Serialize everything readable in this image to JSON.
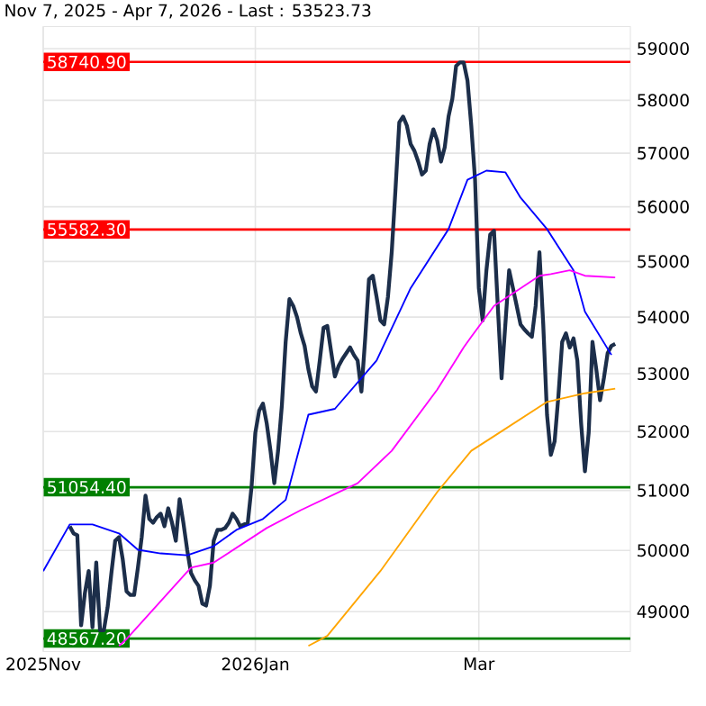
{
  "chart_data": {
    "type": "line",
    "title": "Nov 7, 2025 - Apr 7, 2026 - Last : 53523.73",
    "log": "y",
    "grid": true,
    "xlim": [
      "2025-11-07",
      "2026-04-11"
    ],
    "xticks": [
      {
        "value": "2025-11-07",
        "label": "2025Nov"
      },
      {
        "value": "2026-01-02",
        "label": "2026Jan"
      },
      {
        "value": "2026-03-02",
        "label": "Mar"
      }
    ],
    "ylim": [
      48360,
      59430
    ],
    "yticks": [
      49000,
      50000,
      51000,
      52000,
      53000,
      54000,
      55000,
      56000,
      57000,
      58000,
      59000
    ],
    "ref_lines": [
      {
        "axis": "y",
        "value": 58740.9,
        "label": "58740.90",
        "color": "#ff0000"
      },
      {
        "axis": "y",
        "value": 55582.3,
        "label": "55582.30",
        "color": "#ff0000"
      },
      {
        "axis": "y",
        "value": 51054.4,
        "label": "51054.40",
        "color": "#008000"
      },
      {
        "axis": "y",
        "value": 48567.2,
        "label": "48567.20",
        "color": "#008000"
      }
    ],
    "series": [
      {
        "color": "#1c2e4a",
        "x": [
          "2025-11-14",
          "2025-11-15",
          "2025-11-16",
          "2025-11-17",
          "2025-11-18",
          "2025-11-19",
          "2025-11-20",
          "2025-11-21",
          "2025-11-22",
          "2025-11-23",
          "2025-11-24",
          "2025-11-25",
          "2025-11-26",
          "2025-11-27",
          "2025-11-28",
          "2025-11-29",
          "2025-11-30",
          "2025-12-01",
          "2025-12-02",
          "2025-12-03",
          "2025-12-04",
          "2025-12-05",
          "2025-12-06",
          "2025-12-07",
          "2025-12-08",
          "2025-12-09",
          "2025-12-10",
          "2025-12-11",
          "2025-12-12",
          "2025-12-13",
          "2025-12-14",
          "2025-12-15",
          "2025-12-16",
          "2025-12-17",
          "2025-12-18",
          "2025-12-19",
          "2025-12-20",
          "2025-12-21",
          "2025-12-22",
          "2025-12-23",
          "2025-12-24",
          "2025-12-25",
          "2025-12-26",
          "2025-12-27",
          "2025-12-28",
          "2025-12-29",
          "2025-12-30",
          "2025-12-31",
          "2026-01-01",
          "2026-01-02",
          "2026-01-03",
          "2026-01-04",
          "2026-01-05",
          "2026-01-06",
          "2026-01-07",
          "2026-01-08",
          "2026-01-09",
          "2026-01-10",
          "2026-01-11",
          "2026-01-12",
          "2026-01-13",
          "2026-01-14",
          "2026-01-15",
          "2026-01-16",
          "2026-01-17",
          "2026-01-18",
          "2026-01-19",
          "2026-01-20",
          "2026-01-21",
          "2026-01-22",
          "2026-01-23",
          "2026-01-24",
          "2026-01-25",
          "2026-01-26",
          "2026-01-27",
          "2026-01-28",
          "2026-01-29",
          "2026-01-30",
          "2026-01-31",
          "2026-02-01",
          "2026-02-02",
          "2026-02-03",
          "2026-02-04",
          "2026-02-05",
          "2026-02-06",
          "2026-02-07",
          "2026-02-08",
          "2026-02-09",
          "2026-02-10",
          "2026-02-11",
          "2026-02-12",
          "2026-02-13",
          "2026-02-14",
          "2026-02-15",
          "2026-02-16",
          "2026-02-17",
          "2026-02-18",
          "2026-02-19",
          "2026-02-20",
          "2026-02-21",
          "2026-02-22",
          "2026-02-23",
          "2026-02-24",
          "2026-02-25",
          "2026-02-26",
          "2026-02-27",
          "2026-02-28",
          "2026-03-01",
          "2026-03-02",
          "2026-03-03",
          "2026-03-04",
          "2026-03-05",
          "2026-03-06",
          "2026-03-07",
          "2026-03-08",
          "2026-03-09",
          "2026-03-10",
          "2026-03-11",
          "2026-03-12",
          "2026-03-13",
          "2026-03-14",
          "2026-03-15",
          "2026-03-16",
          "2026-03-17",
          "2026-03-18",
          "2026-03-19",
          "2026-03-20",
          "2026-03-21",
          "2026-03-22",
          "2026-03-23",
          "2026-03-24",
          "2026-03-25",
          "2026-03-26",
          "2026-03-27",
          "2026-03-28",
          "2026-03-29",
          "2026-03-30",
          "2026-03-31",
          "2026-04-01",
          "2026-04-02",
          "2026-04-03",
          "2026-04-04",
          "2026-04-05",
          "2026-04-06",
          "2026-04-07"
        ],
        "values": [
          50400,
          50280,
          50250,
          48780,
          49300,
          49660,
          48750,
          49800,
          48700,
          48700,
          49070,
          49630,
          50160,
          50220,
          49850,
          49330,
          49270,
          49270,
          49720,
          50220,
          50910,
          50520,
          50460,
          50550,
          50610,
          50400,
          50700,
          50460,
          50160,
          50850,
          50460,
          50010,
          49630,
          49510,
          49420,
          49130,
          49100,
          49420,
          50160,
          50340,
          50340,
          50370,
          50460,
          50610,
          50520,
          50400,
          50430,
          50460,
          51060,
          51980,
          52360,
          52480,
          52140,
          51670,
          51120,
          51670,
          52450,
          53560,
          54320,
          54200,
          54000,
          53710,
          53490,
          53080,
          52780,
          52690,
          53230,
          53810,
          53840,
          53390,
          52950,
          53140,
          53260,
          53360,
          53460,
          53330,
          53230,
          52690,
          53620,
          54680,
          54740,
          54360,
          53940,
          53870,
          54360,
          55170,
          56330,
          57580,
          57690,
          57520,
          57170,
          57040,
          56840,
          56600,
          56670,
          57170,
          57450,
          57240,
          56840,
          57110,
          57690,
          58030,
          58660,
          58730,
          58730,
          58380,
          57520,
          56500,
          54520,
          53940,
          54840,
          55490,
          55560,
          54200,
          52920,
          53870,
          54840,
          54520,
          54200,
          53870,
          53780,
          53710,
          53650,
          54200,
          55170,
          53870,
          52290,
          51600,
          51830,
          52610,
          53560,
          53710,
          53460,
          53620,
          53230,
          52140,
          51320,
          51980,
          53560,
          53080,
          52540,
          52920,
          53360,
          53490,
          53523.73
        ]
      },
      {
        "color": "#0000ff",
        "x": [
          "2025-11-07",
          "2025-11-14",
          "2025-11-20",
          "2025-11-27",
          "2025-12-02",
          "2025-12-08",
          "2025-12-15",
          "2025-12-22",
          "2025-12-28",
          "2026-01-04",
          "2026-01-10",
          "2026-01-16",
          "2026-01-23",
          "2026-02-03",
          "2026-02-12",
          "2026-02-22",
          "2026-02-27",
          "2026-03-04",
          "2026-03-09",
          "2026-03-13",
          "2026-03-20",
          "2026-03-27",
          "2026-03-30",
          "2026-04-06"
        ],
        "values": [
          49660,
          50430,
          50430,
          50280,
          50010,
          49950,
          49920,
          50070,
          50340,
          50520,
          50840,
          52290,
          52390,
          53230,
          54520,
          55590,
          56500,
          56670,
          56640,
          56170,
          55590,
          54840,
          54100,
          53330
        ]
      },
      {
        "color": "#ff00ff",
        "x": [
          "2025-11-27",
          "2025-11-29",
          "2025-12-16",
          "2025-12-22",
          "2026-01-05",
          "2026-01-14",
          "2026-01-29",
          "2026-02-07",
          "2026-02-19",
          "2026-02-26",
          "2026-02-28",
          "2026-03-06",
          "2026-03-18",
          "2026-03-21",
          "2026-03-26",
          "2026-03-30",
          "2026-04-07"
        ],
        "values": [
          48450,
          48560,
          49720,
          49800,
          50370,
          50670,
          51120,
          51670,
          52720,
          53460,
          53650,
          54200,
          54740,
          54770,
          54840,
          54740,
          54710
        ]
      },
      {
        "color": "#ffa500",
        "x": [
          "2026-01-16",
          "2026-01-21",
          "2026-02-04",
          "2026-02-19",
          "2026-02-28",
          "2026-03-06",
          "2026-03-20",
          "2026-03-30",
          "2026-04-07"
        ],
        "values": [
          48450,
          48610,
          49660,
          50970,
          51670,
          51920,
          52510,
          52660,
          52740
        ]
      }
    ]
  }
}
